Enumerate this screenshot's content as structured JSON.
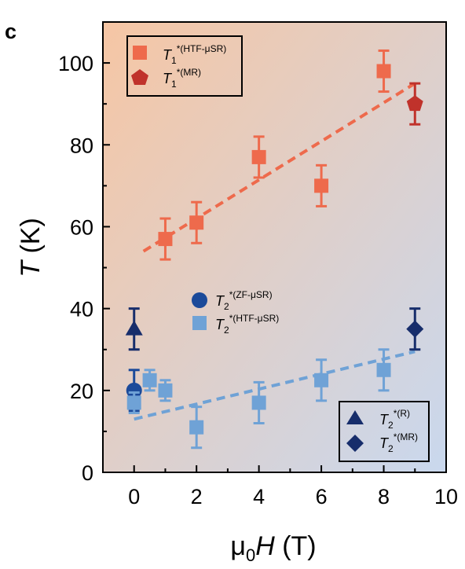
{
  "chart_data": {
    "type": "scatter",
    "panel_label": "c",
    "xlabel": {
      "prefix": "μ",
      "sub": "0",
      "italic": "H",
      "suffix": " (T)"
    },
    "ylabel": {
      "italic": "T",
      "suffix": " (K)"
    },
    "xlim": [
      -1,
      10
    ],
    "ylim": [
      0,
      110
    ],
    "x_ticks": [
      0,
      2,
      4,
      6,
      8,
      10
    ],
    "y_ticks": [
      0,
      20,
      40,
      60,
      80,
      100
    ],
    "background_gradient": {
      "top_left": "#f6c6a4",
      "bottom_right": "#c9d8ee"
    },
    "series": [
      {
        "key": "t1_htf",
        "legend": {
          "base": "T",
          "sub": "1",
          "sup": "*(HTF-μSR)"
        },
        "marker": "square",
        "color": "#ee6a4c",
        "points": [
          {
            "x": 1,
            "y": 57,
            "err": 5
          },
          {
            "x": 2,
            "y": 61,
            "err": 5
          },
          {
            "x": 4,
            "y": 77,
            "err": 5
          },
          {
            "x": 6,
            "y": 70,
            "err": 5
          },
          {
            "x": 8,
            "y": 98,
            "err": 5
          }
        ]
      },
      {
        "key": "t1_mr",
        "legend": {
          "base": "T",
          "sub": "1",
          "sup": "*(MR)"
        },
        "marker": "pentagon",
        "color": "#c0322b",
        "points": [
          {
            "x": 9,
            "y": 90,
            "err": 5
          }
        ]
      },
      {
        "key": "t2_zf",
        "legend": {
          "base": "T",
          "sub": "2",
          "sup": "*(ZF-μSR)"
        },
        "marker": "circle",
        "color": "#1b4a9a",
        "points": [
          {
            "x": 0,
            "y": 20,
            "err": 5
          }
        ]
      },
      {
        "key": "t2_htf",
        "legend": {
          "base": "T",
          "sub": "2",
          "sup": "*(HTF-μSR)"
        },
        "marker": "square",
        "color": "#6fa2d6",
        "points": [
          {
            "x": 0,
            "y": 17,
            "err": 2.5
          },
          {
            "x": 0.5,
            "y": 22.5,
            "err": 2.5
          },
          {
            "x": 1,
            "y": 20,
            "err": 2.5
          },
          {
            "x": 2,
            "y": 11,
            "err": 5
          },
          {
            "x": 4,
            "y": 17,
            "err": 5
          },
          {
            "x": 6,
            "y": 22.5,
            "err": 5
          },
          {
            "x": 8,
            "y": 25,
            "err": 5
          }
        ]
      },
      {
        "key": "t2_r",
        "legend": {
          "base": "T",
          "sub": "2",
          "sup": "*(R)"
        },
        "marker": "triangle",
        "color": "#172d6b",
        "points": [
          {
            "x": 0,
            "y": 35,
            "err": 5
          }
        ]
      },
      {
        "key": "t2_mr",
        "legend": {
          "base": "T",
          "sub": "2",
          "sup": "*(MR)"
        },
        "marker": "diamond",
        "color": "#172d6b",
        "points": [
          {
            "x": 9,
            "y": 35,
            "err": 5
          }
        ]
      }
    ],
    "fit_lines": [
      {
        "key": "fit_t1",
        "color": "#ee6a4c",
        "x": [
          0.3,
          9
        ],
        "y": [
          54,
          95
        ],
        "style": "dashed"
      },
      {
        "key": "fit_t2",
        "color": "#6fa2d6",
        "x": [
          0,
          9
        ],
        "y": [
          13,
          29.5
        ],
        "style": "dashed"
      }
    ],
    "legends": [
      {
        "key": "legend-t1",
        "position": "top-left",
        "entries": [
          "t1_htf",
          "t1_mr"
        ]
      },
      {
        "key": "legend-t2-mid",
        "position": "center-left",
        "entries": [
          "t2_zf",
          "t2_htf"
        ]
      },
      {
        "key": "legend-t2-br",
        "position": "bottom-right",
        "entries": [
          "t2_r",
          "t2_mr"
        ]
      }
    ]
  }
}
